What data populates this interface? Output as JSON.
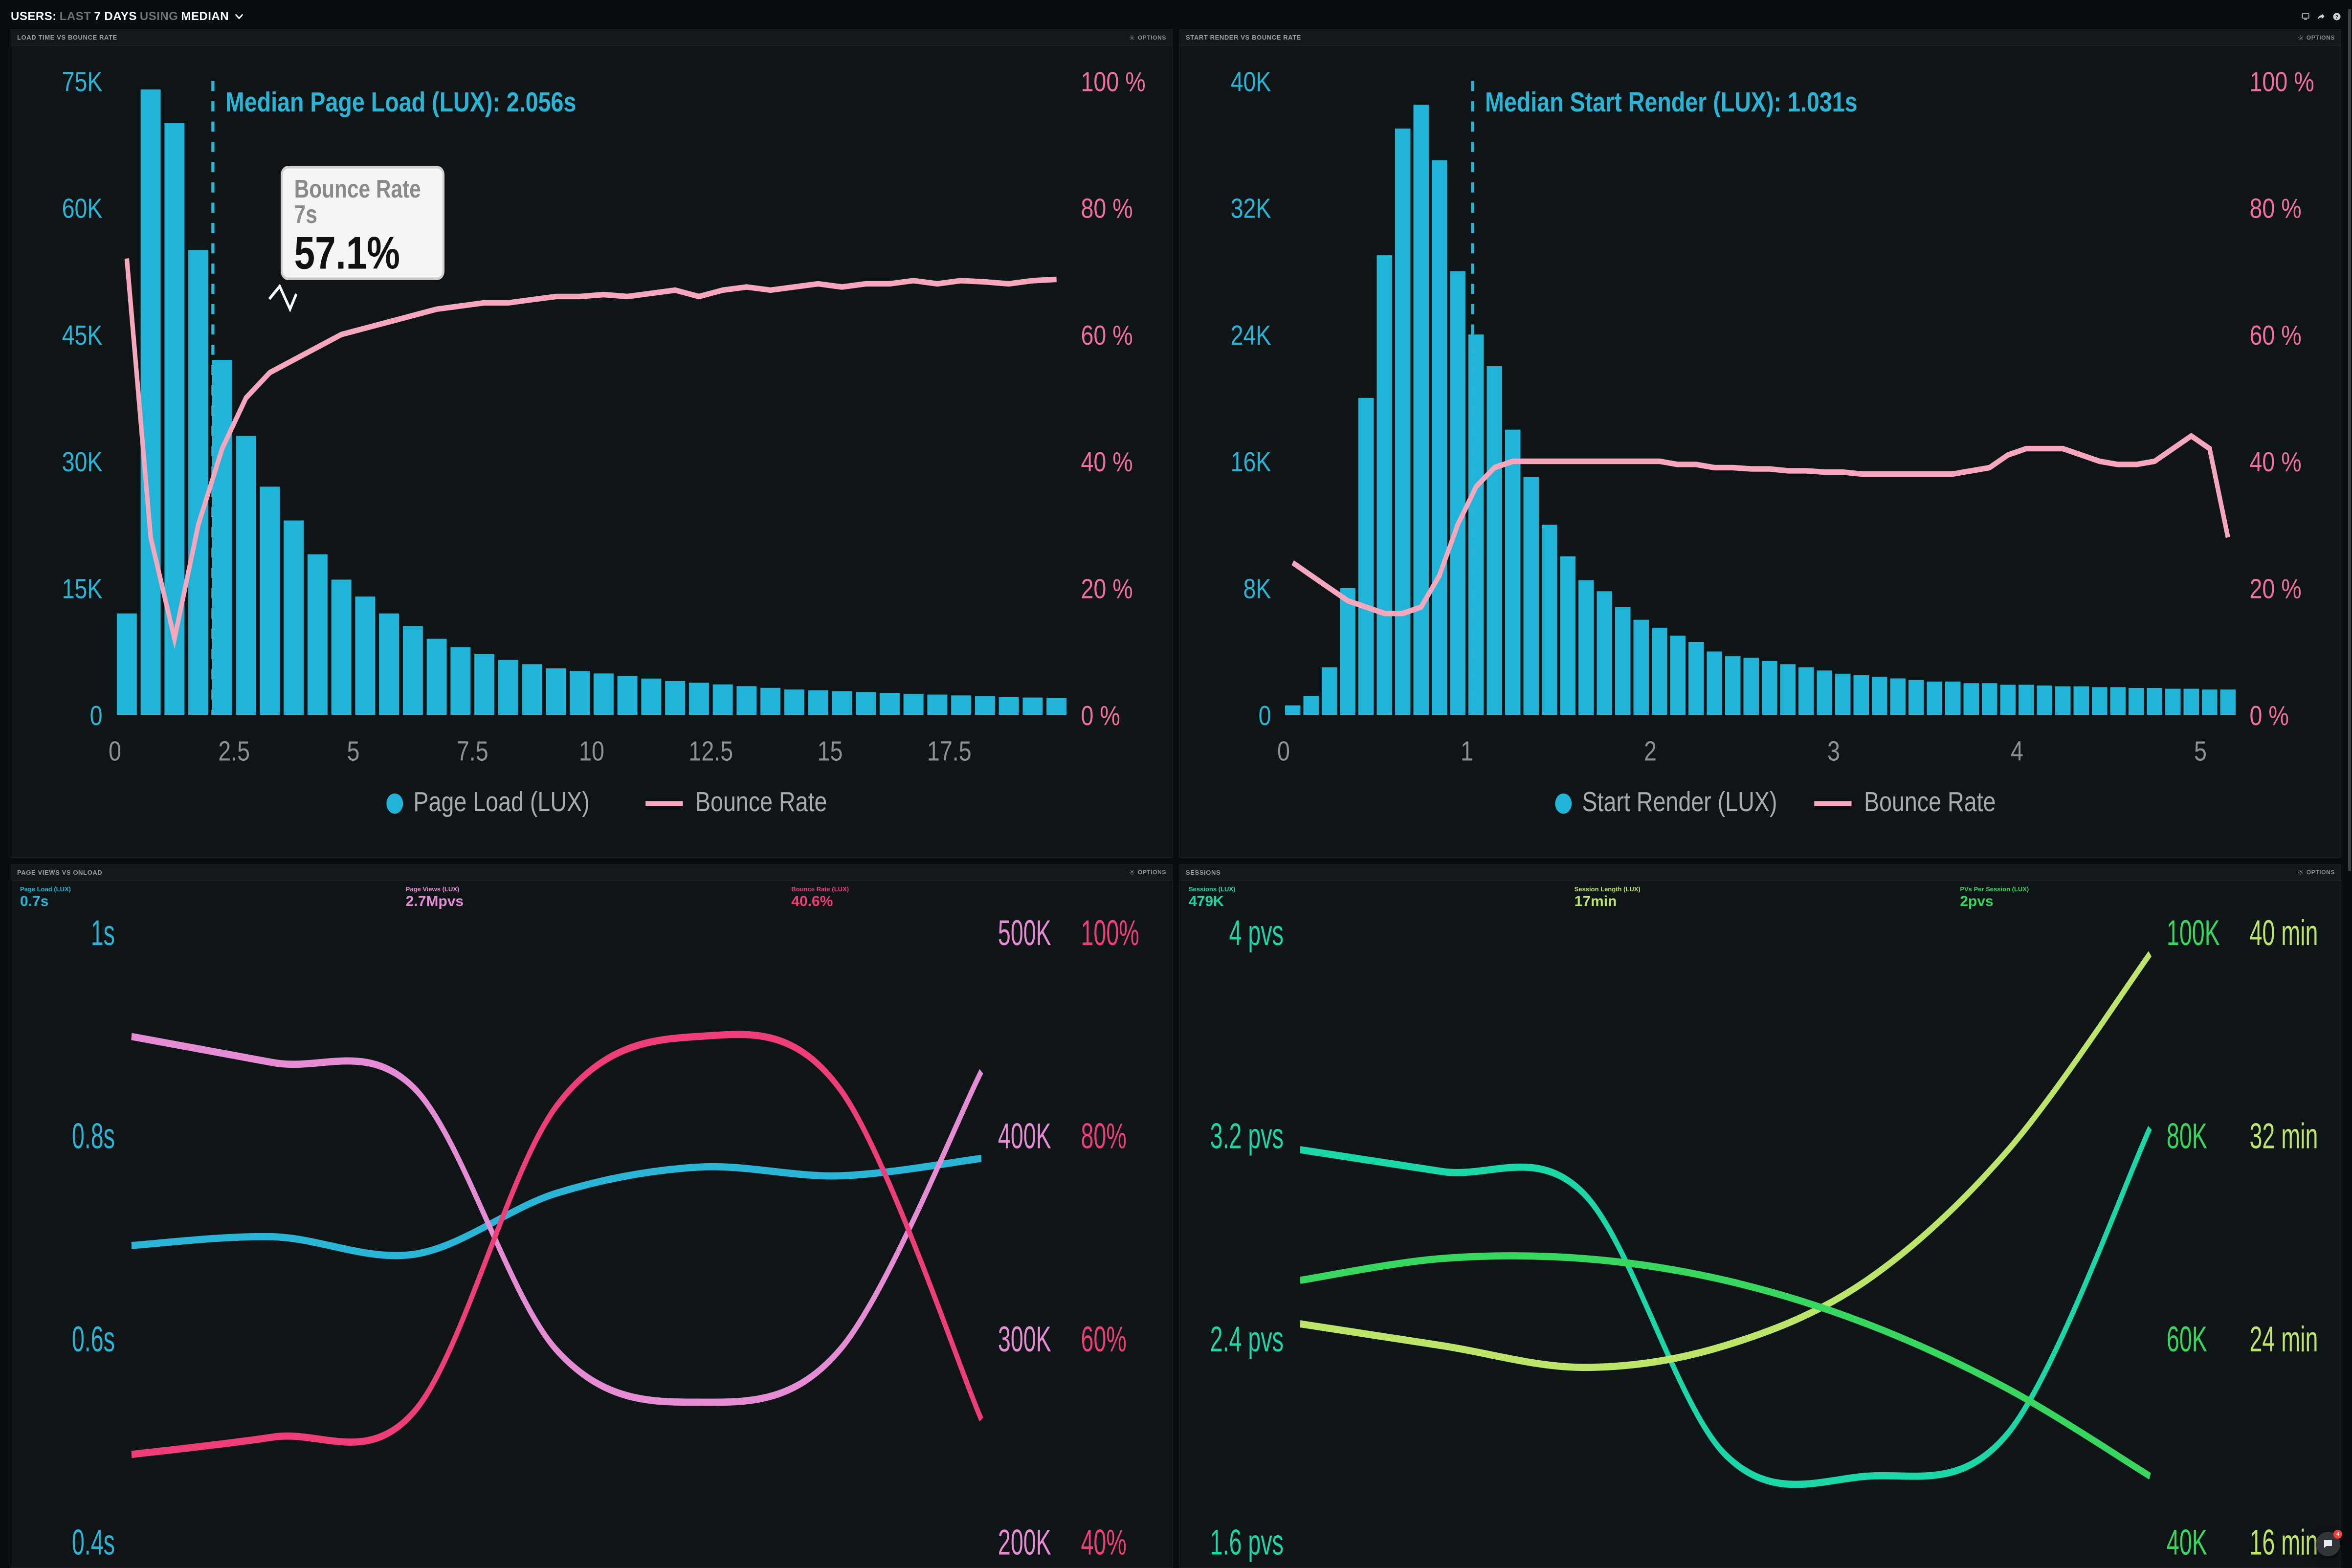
{
  "header": {
    "prefix": "Users:",
    "dim1": "Last",
    "bright1": "7 Days",
    "dim2": "Using",
    "bright2": "Median"
  },
  "options_label": "Options",
  "colors": {
    "bar": "#1fb4d8",
    "bounce": "#f6a7bd",
    "bg": "#0a0d0f",
    "panel": "#0f1416",
    "blue": "#2ab5d6",
    "pinklight": "#e68cd5",
    "pink": "#ef3d77",
    "teal": "#1bd6a6",
    "avocado": "#bde56a",
    "green": "#37d65f"
  },
  "chart1": {
    "title": "Load Time vs Bounce Rate",
    "median_label": "Median Page Load (LUX): 2.056s",
    "median_x": 2.056,
    "tooltip_title": "Bounce Rate 7s",
    "tooltip_value": "57.1%",
    "left_axis": {
      "ticks": [
        "75K",
        "60K",
        "45K",
        "30K",
        "15K",
        "0"
      ],
      "max": 75000
    },
    "right_axis": {
      "ticks": [
        "100 %",
        "80 %",
        "60 %",
        "40 %",
        "20 %",
        "0 %"
      ],
      "max": 100
    },
    "x_axis": {
      "ticks": [
        "0",
        "2.5",
        "5",
        "7.5",
        "10",
        "12.5",
        "15",
        "17.5"
      ],
      "step": 0.5,
      "min": 0,
      "max": 20
    },
    "bar_values": [
      12000,
      74000,
      70000,
      55000,
      42000,
      33000,
      27000,
      23000,
      19000,
      16000,
      14000,
      12000,
      10500,
      9000,
      8000,
      7200,
      6500,
      6000,
      5500,
      5200,
      4900,
      4600,
      4300,
      4000,
      3800,
      3600,
      3400,
      3200,
      3000,
      2900,
      2800,
      2700,
      2600,
      2500,
      2400,
      2300,
      2200,
      2100,
      2050,
      2000
    ],
    "bounce_values": [
      72,
      28,
      12,
      30,
      42,
      50,
      54,
      56,
      58,
      60,
      61,
      62,
      63,
      64,
      64.5,
      65,
      65,
      65.5,
      66,
      66,
      66.3,
      66,
      66.5,
      67,
      66,
      67,
      67.5,
      67,
      67.5,
      68,
      67.5,
      68,
      68,
      68.5,
      68,
      68.5,
      68.3,
      68,
      68.5,
      68.7
    ],
    "legend_bar": "Page Load (LUX)",
    "legend_line": "Bounce Rate"
  },
  "chart2": {
    "title": "Start Render vs Bounce Rate",
    "median_label": "Median Start Render (LUX): 1.031s",
    "median_x": 1.031,
    "left_axis": {
      "ticks": [
        "40K",
        "32K",
        "24K",
        "16K",
        "8K",
        "0"
      ],
      "max": 40000
    },
    "right_axis": {
      "ticks": [
        "100 %",
        "80 %",
        "60 %",
        "40 %",
        "20 %",
        "0 %"
      ],
      "max": 100
    },
    "x_axis": {
      "ticks": [
        "0",
        "1",
        "2",
        "3",
        "4",
        "5"
      ],
      "step": 0.1,
      "min": 0,
      "max": 5.2
    },
    "bar_values": [
      600,
      1200,
      3000,
      8000,
      20000,
      29000,
      37000,
      38500,
      35000,
      28000,
      24000,
      22000,
      18000,
      15000,
      12000,
      10000,
      8500,
      7800,
      6800,
      6000,
      5500,
      5000,
      4600,
      4000,
      3700,
      3600,
      3400,
      3200,
      3000,
      2800,
      2600,
      2500,
      2400,
      2300,
      2200,
      2100,
      2100,
      2000,
      2000,
      1900,
      1900,
      1850,
      1800,
      1800,
      1750,
      1750,
      1700,
      1700,
      1650,
      1650,
      1600,
      1600
    ],
    "bounce_values": [
      24,
      22,
      20,
      18,
      17,
      16,
      16,
      17,
      22,
      30,
      36,
      39,
      40,
      40,
      40,
      40,
      40,
      40,
      40,
      40,
      40,
      39.5,
      39.5,
      39,
      39,
      38.8,
      38.8,
      38.5,
      38.5,
      38.3,
      38.3,
      38,
      38,
      38,
      38,
      38,
      38,
      38.5,
      39,
      41,
      42,
      42,
      42,
      41,
      40,
      39.5,
      39.5,
      40,
      42,
      44,
      42,
      28
    ],
    "legend_bar": "Start Render (LUX)",
    "legend_line": "Bounce Rate"
  },
  "chart3": {
    "title": "Page Views vs Onload",
    "metrics": [
      {
        "label": "Page Load (LUX)",
        "value": "0.7s",
        "class": "c-blue"
      },
      {
        "label": "Page Views (LUX)",
        "value": "2.7Mpvs",
        "class": "c-pinklight"
      },
      {
        "label": "Bounce Rate (LUX)",
        "value": "40.6%",
        "class": "c-pink"
      }
    ],
    "left_axis": [
      "1s",
      "0.8s",
      "0.6s",
      "0.4s"
    ],
    "right1_axis": [
      "500K",
      "400K",
      "300K",
      "200K"
    ],
    "right2_axis": [
      "100%",
      "80%",
      "60%",
      "40%"
    ],
    "series": {
      "blue": [
        0.64,
        0.65,
        0.63,
        0.7,
        0.73,
        0.72,
        0.74
      ],
      "pinkl": [
        0.88,
        0.85,
        0.82,
        0.52,
        0.46,
        0.52,
        0.84
      ],
      "pink": [
        0.4,
        0.42,
        0.45,
        0.8,
        0.88,
        0.82,
        0.44
      ]
    }
  },
  "chart4": {
    "title": "Sessions",
    "metrics": [
      {
        "label": "Sessions (LUX)",
        "value": "479K",
        "class": "c-teal"
      },
      {
        "label": "Session Length (LUX)",
        "value": "17min",
        "class": "c-avo"
      },
      {
        "label": "PVs Per Session (LUX)",
        "value": "2pvs",
        "class": "c-green"
      }
    ],
    "left_axis": [
      "4 pvs",
      "3.2 pvs",
      "2.4 pvs",
      "1.6 pvs"
    ],
    "right1_axis": [
      "100K",
      "80K",
      "60K",
      "40K"
    ],
    "right2_axis": [
      "40 min",
      "32 min",
      "24 min",
      "16 min"
    ],
    "series": {
      "teal": [
        3.0,
        2.9,
        2.8,
        1.6,
        1.5,
        1.7,
        3.1
      ],
      "avo": [
        2.2,
        2.1,
        2.0,
        2.1,
        2.4,
        3.0,
        3.9
      ],
      "green": [
        2.4,
        2.5,
        2.5,
        2.4,
        2.2,
        1.9,
        1.5
      ]
    }
  },
  "chat_badge": "4"
}
